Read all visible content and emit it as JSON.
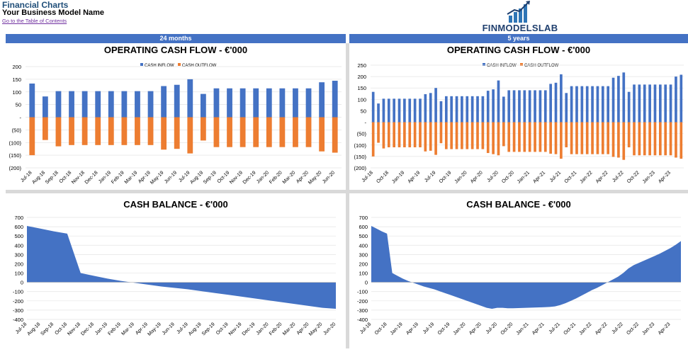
{
  "header": {
    "title": "Financial Charts",
    "business_name": "Your Business Model Name",
    "toc_link": "Go to the Table of Contents"
  },
  "logo": {
    "text": "FINMODELSLAB"
  },
  "bands": {
    "left": "24 months",
    "right": "5 years"
  },
  "colors": {
    "inflow": "#4472c4",
    "outflow": "#ed7d31",
    "balance": "#4472c4",
    "band": "#4472c4"
  },
  "chart_data": [
    {
      "id": "ocf24",
      "type": "bar",
      "title": "OPERATING CASH FLOW - €'000",
      "legend": [
        "CASH INFLOW",
        "CASH OUTFLOW"
      ],
      "legend_position": "top-center",
      "ylim": [
        -200,
        200
      ],
      "yticks": [
        200,
        150,
        100,
        50,
        0,
        -50,
        -100,
        -150,
        -200
      ],
      "ytick_labels": [
        "200",
        "150",
        "100",
        "50",
        "-",
        "(50)",
        "(100)",
        "(150)",
        "(200)"
      ],
      "categories": [
        "Jul-18",
        "Aug-18",
        "Sep-18",
        "Oct-18",
        "Nov-18",
        "Dec-18",
        "Jan-19",
        "Feb-19",
        "Mar-19",
        "Apr-19",
        "May-19",
        "Jun-19",
        "Jul-19",
        "Aug-19",
        "Sep-19",
        "Oct-19",
        "Nov-19",
        "Dec-19",
        "Jan-20",
        "Feb-20",
        "Mar-20",
        "Apr-20",
        "May-20",
        "Jun-20"
      ],
      "series": [
        {
          "name": "CASH INFLOW",
          "values": [
            133,
            82,
            103,
            103,
            103,
            103,
            103,
            103,
            103,
            103,
            123,
            128,
            150,
            92,
            114,
            114,
            114,
            114,
            114,
            114,
            114,
            114,
            138,
            144
          ]
        },
        {
          "name": "CASH OUTFLOW",
          "values": [
            -150,
            -90,
            -115,
            -110,
            -110,
            -110,
            -110,
            -110,
            -110,
            -110,
            -128,
            -125,
            -143,
            -92,
            -118,
            -118,
            -118,
            -118,
            -118,
            -118,
            -118,
            -118,
            -135,
            -140
          ]
        }
      ]
    },
    {
      "id": "ocf5y",
      "type": "bar",
      "title": "OPERATING CASH FLOW - €'000",
      "legend": [
        "CASH INFLOW",
        "CASH OUTFLOW"
      ],
      "legend_position": "top-center",
      "ylim": [
        -200,
        250
      ],
      "yticks": [
        250,
        200,
        150,
        100,
        50,
        0,
        -50,
        -100,
        -150,
        -200
      ],
      "ytick_labels": [
        "250",
        "200",
        "150",
        "100",
        "50",
        "-",
        "(50)",
        "(100)",
        "(150)",
        "(200)"
      ],
      "categories": [
        "Jul-18",
        "Aug-18",
        "Sep-18",
        "Oct-18",
        "Nov-18",
        "Dec-18",
        "Jan-19",
        "Feb-19",
        "Mar-19",
        "Apr-19",
        "May-19",
        "Jun-19",
        "Jul-19",
        "Aug-19",
        "Sep-19",
        "Oct-19",
        "Nov-19",
        "Dec-19",
        "Jan-20",
        "Feb-20",
        "Mar-20",
        "Apr-20",
        "May-20",
        "Jun-20",
        "Jul-20",
        "Aug-20",
        "Sep-20",
        "Oct-20",
        "Nov-20",
        "Dec-20",
        "Jan-21",
        "Feb-21",
        "Mar-21",
        "Apr-21",
        "May-21",
        "Jun-21",
        "Jul-21",
        "Aug-21",
        "Sep-21",
        "Oct-21",
        "Nov-21",
        "Dec-21",
        "Jan-22",
        "Feb-22",
        "Mar-22",
        "Apr-22",
        "May-22",
        "Jun-22",
        "Jul-22",
        "Aug-22",
        "Sep-22",
        "Oct-22",
        "Nov-22",
        "Dec-22",
        "Jan-23",
        "Feb-23",
        "Mar-23",
        "Apr-23",
        "May-23",
        "Jun-23"
      ],
      "tick_labels_shown": [
        "Jul-18",
        "Oct-18",
        "Jan-19",
        "Apr-19",
        "Jul-19",
        "Oct-19",
        "Jan-20",
        "Apr-20",
        "Jul-20",
        "Oct-20",
        "Jan-21",
        "Apr-21",
        "Jul-21",
        "Oct-21",
        "Jan-22",
        "Apr-22",
        "Jul-22",
        "Oct-22",
        "Jan-23",
        "Apr-23"
      ],
      "series": [
        {
          "name": "CASH INFLOW",
          "values": [
            133,
            82,
            103,
            103,
            103,
            103,
            103,
            103,
            103,
            103,
            123,
            128,
            150,
            92,
            114,
            114,
            114,
            114,
            114,
            114,
            114,
            114,
            138,
            144,
            183,
            112,
            140,
            140,
            140,
            140,
            140,
            140,
            140,
            140,
            168,
            173,
            210,
            128,
            158,
            158,
            158,
            158,
            158,
            158,
            158,
            158,
            195,
            203,
            218,
            133,
            165,
            165,
            165,
            165,
            165,
            165,
            165,
            165,
            200,
            208
          ]
        },
        {
          "name": "CASH OUTFLOW",
          "values": [
            -150,
            -90,
            -115,
            -110,
            -110,
            -110,
            -110,
            -110,
            -110,
            -110,
            -128,
            -125,
            -143,
            -92,
            -118,
            -118,
            -118,
            -118,
            -118,
            -118,
            -118,
            -118,
            -135,
            -140,
            -145,
            -105,
            -130,
            -130,
            -130,
            -130,
            -130,
            -130,
            -130,
            -130,
            -138,
            -140,
            -160,
            -110,
            -140,
            -140,
            -140,
            -140,
            -140,
            -140,
            -140,
            -140,
            -152,
            -155,
            -165,
            -110,
            -145,
            -145,
            -145,
            -145,
            -145,
            -145,
            -145,
            -145,
            -155,
            -160
          ]
        }
      ]
    },
    {
      "id": "cb24",
      "type": "area",
      "title": "CASH BALANCE - €'000",
      "ylim": [
        -400,
        700
      ],
      "yticks": [
        700,
        600,
        500,
        400,
        300,
        200,
        100,
        0,
        -100,
        -200,
        -300,
        -400
      ],
      "ytick_labels": [
        "700",
        "600",
        "500",
        "400",
        "300",
        "200",
        "100",
        "0",
        "-100",
        "-200",
        "-300",
        "-400"
      ],
      "categories": [
        "Jul-18",
        "Aug-18",
        "Sep-18",
        "Oct-18",
        "Nov-18",
        "Dec-18",
        "Jan-19",
        "Feb-19",
        "Mar-19",
        "Apr-19",
        "May-19",
        "Jun-19",
        "Jul-19",
        "Aug-19",
        "Sep-19",
        "Oct-19",
        "Nov-19",
        "Dec-19",
        "Jan-20",
        "Feb-20",
        "Mar-20",
        "Apr-20",
        "May-20",
        "Jun-20"
      ],
      "values": [
        608,
        580,
        550,
        525,
        100,
        70,
        40,
        15,
        -5,
        -25,
        -45,
        -60,
        -75,
        -95,
        -115,
        -135,
        -155,
        -175,
        -195,
        -215,
        -235,
        -255,
        -275,
        -285
      ]
    },
    {
      "id": "cb5y",
      "type": "area",
      "title": "CASH BALANCE - €'000",
      "ylim": [
        -400,
        700
      ],
      "yticks": [
        700,
        600,
        500,
        400,
        300,
        200,
        100,
        0,
        -100,
        -200,
        -300,
        -400
      ],
      "ytick_labels": [
        "700",
        "600",
        "500",
        "400",
        "300",
        "200",
        "100",
        "0",
        "-100",
        "-200",
        "-300",
        "-400"
      ],
      "categories": [
        "Jul-18",
        "Aug-18",
        "Sep-18",
        "Oct-18",
        "Nov-18",
        "Dec-18",
        "Jan-19",
        "Feb-19",
        "Mar-19",
        "Apr-19",
        "May-19",
        "Jun-19",
        "Jul-19",
        "Aug-19",
        "Sep-19",
        "Oct-19",
        "Nov-19",
        "Dec-19",
        "Jan-20",
        "Feb-20",
        "Mar-20",
        "Apr-20",
        "May-20",
        "Jun-20",
        "Jul-20",
        "Aug-20",
        "Sep-20",
        "Oct-20",
        "Nov-20",
        "Dec-20",
        "Jan-21",
        "Feb-21",
        "Mar-21",
        "Apr-21",
        "May-21",
        "Jun-21",
        "Jul-21",
        "Aug-21",
        "Sep-21",
        "Oct-21",
        "Nov-21",
        "Dec-21",
        "Jan-22",
        "Feb-22",
        "Mar-22",
        "Apr-22",
        "May-22",
        "Jun-22",
        "Jul-22",
        "Aug-22",
        "Sep-22",
        "Oct-22",
        "Nov-22",
        "Dec-22",
        "Jan-23",
        "Feb-23",
        "Mar-23",
        "Apr-23",
        "May-23",
        "Jun-23"
      ],
      "tick_labels_shown": [
        "Jul-18",
        "Oct-18",
        "Jan-19",
        "Apr-19",
        "Jul-19",
        "Oct-19",
        "Jan-20",
        "Apr-20",
        "Jul-20",
        "Oct-20",
        "Jan-21",
        "Apr-21",
        "Jul-21",
        "Oct-21",
        "Jan-22",
        "Apr-22",
        "Jul-22",
        "Oct-22",
        "Jan-23",
        "Apr-23"
      ],
      "values": [
        608,
        580,
        550,
        525,
        100,
        70,
        40,
        15,
        -5,
        -25,
        -45,
        -60,
        -75,
        -95,
        -115,
        -135,
        -155,
        -175,
        -195,
        -215,
        -235,
        -255,
        -275,
        -285,
        -275,
        -275,
        -280,
        -280,
        -278,
        -276,
        -274,
        -272,
        -270,
        -268,
        -265,
        -260,
        -245,
        -225,
        -200,
        -175,
        -145,
        -115,
        -85,
        -60,
        -30,
        0,
        30,
        60,
        100,
        150,
        185,
        210,
        235,
        260,
        285,
        310,
        340,
        370,
        405,
        445
      ]
    }
  ]
}
